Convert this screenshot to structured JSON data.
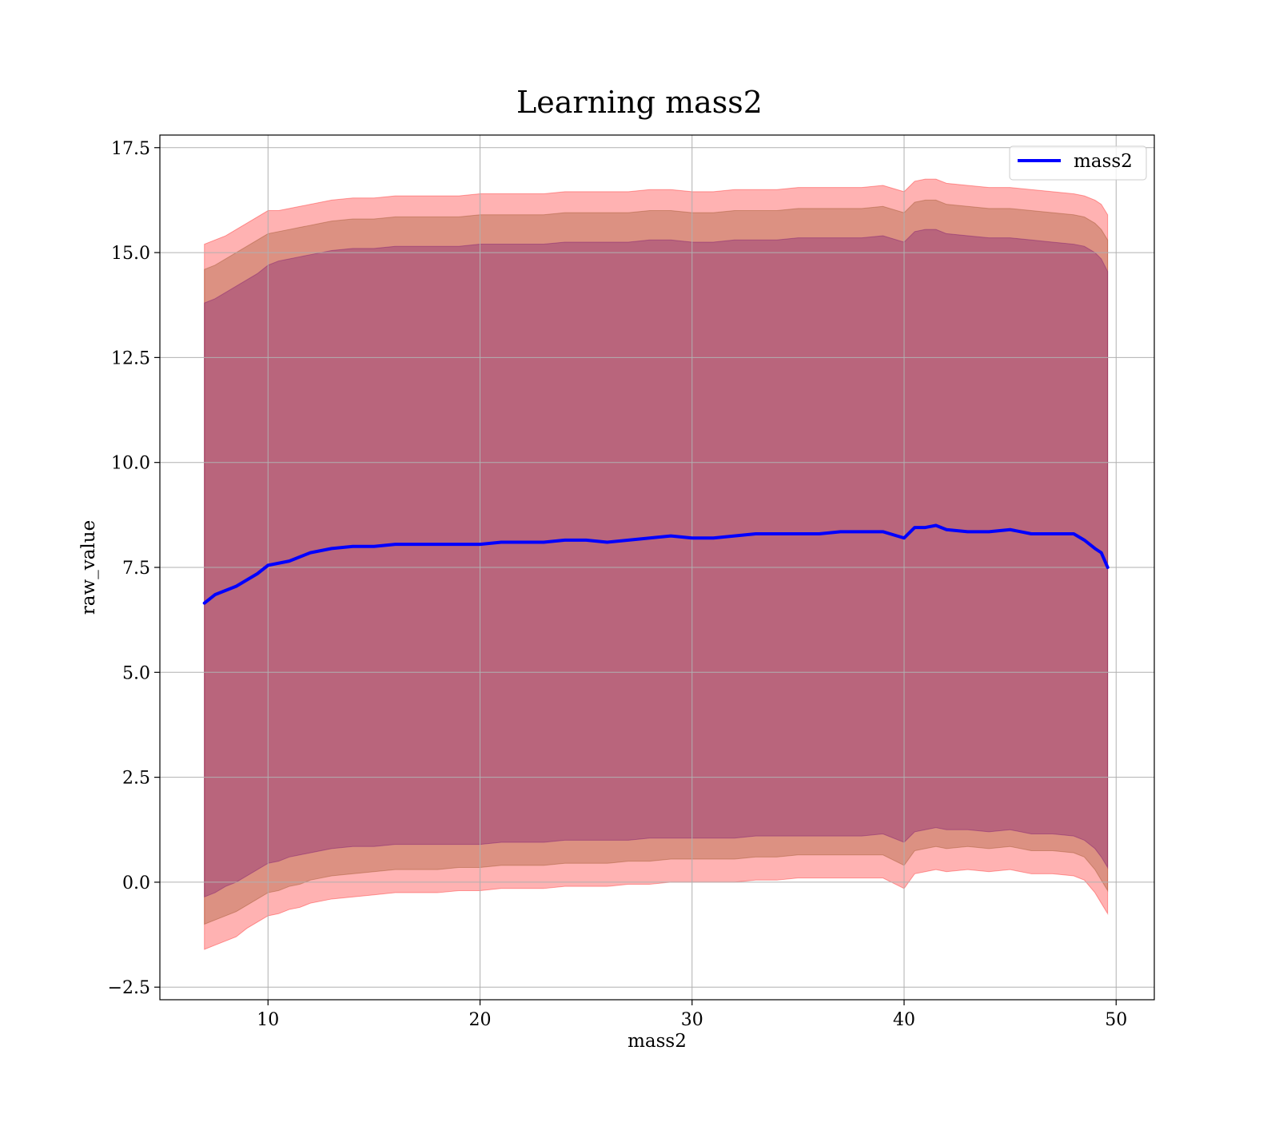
{
  "chart_data": {
    "type": "line",
    "title": "Learning mass2",
    "xlabel": "mass2",
    "ylabel": "raw_value",
    "xlim": [
      4.9,
      51.8
    ],
    "ylim": [
      -2.8,
      17.8
    ],
    "x_ticks": [
      10,
      20,
      30,
      40,
      50
    ],
    "y_ticks": [
      -2.5,
      0.0,
      2.5,
      5.0,
      7.5,
      10.0,
      12.5,
      15.0,
      17.5
    ],
    "x_tick_labels": [
      "10",
      "20",
      "30",
      "40",
      "50"
    ],
    "y_tick_labels": [
      "−2.5",
      "0.0",
      "2.5",
      "5.0",
      "7.5",
      "10.0",
      "12.5",
      "15.0",
      "17.5"
    ],
    "grid": true,
    "legend_position": "top-right",
    "series": [
      {
        "name": "mass2",
        "color": "#0000ff",
        "x": [
          7.0,
          7.5,
          8.0,
          8.5,
          9.0,
          9.5,
          10.0,
          10.5,
          11.0,
          11.5,
          12.0,
          12.5,
          13.0,
          14.0,
          15.0,
          16.0,
          17.0,
          18.0,
          19.0,
          20.0,
          21.0,
          22.0,
          23.0,
          24.0,
          25.0,
          26.0,
          27.0,
          28.0,
          29.0,
          30.0,
          31.0,
          32.0,
          33.0,
          34.0,
          35.0,
          36.0,
          37.0,
          38.0,
          39.0,
          40.0,
          40.5,
          41.0,
          41.5,
          42.0,
          43.0,
          44.0,
          45.0,
          46.0,
          47.0,
          48.0,
          48.5,
          49.0,
          49.3,
          49.6
        ],
        "values": [
          6.65,
          6.85,
          6.95,
          7.05,
          7.2,
          7.35,
          7.55,
          7.6,
          7.65,
          7.75,
          7.85,
          7.9,
          7.95,
          8.0,
          8.0,
          8.05,
          8.05,
          8.05,
          8.05,
          8.05,
          8.1,
          8.1,
          8.1,
          8.15,
          8.15,
          8.1,
          8.15,
          8.2,
          8.25,
          8.2,
          8.2,
          8.25,
          8.3,
          8.3,
          8.3,
          8.3,
          8.35,
          8.35,
          8.35,
          8.2,
          8.45,
          8.45,
          8.5,
          8.4,
          8.35,
          8.35,
          8.4,
          8.3,
          8.3,
          8.3,
          8.15,
          7.95,
          7.85,
          7.5
        ]
      }
    ],
    "bands": [
      {
        "label": "",
        "color": "#ff0000",
        "opacity": 0.3,
        "x": [
          7.0,
          7.5,
          8.0,
          8.5,
          9.0,
          9.5,
          10.0,
          10.5,
          11.0,
          11.5,
          12.0,
          12.5,
          13.0,
          14.0,
          15.0,
          16.0,
          17.0,
          18.0,
          19.0,
          20.0,
          21.0,
          22.0,
          23.0,
          24.0,
          25.0,
          26.0,
          27.0,
          28.0,
          29.0,
          30.0,
          31.0,
          32.0,
          33.0,
          34.0,
          35.0,
          36.0,
          37.0,
          38.0,
          39.0,
          40.0,
          40.5,
          41.0,
          41.5,
          42.0,
          43.0,
          44.0,
          45.0,
          46.0,
          47.0,
          48.0,
          48.5,
          49.0,
          49.3,
          49.6
        ],
        "lower": [
          -1.6,
          -1.5,
          -1.4,
          -1.3,
          -1.1,
          -0.95,
          -0.8,
          -0.75,
          -0.65,
          -0.6,
          -0.5,
          -0.45,
          -0.4,
          -0.35,
          -0.3,
          -0.25,
          -0.25,
          -0.25,
          -0.2,
          -0.2,
          -0.15,
          -0.15,
          -0.15,
          -0.1,
          -0.1,
          -0.1,
          -0.05,
          -0.05,
          0.0,
          0.0,
          0.0,
          0.0,
          0.05,
          0.05,
          0.1,
          0.1,
          0.1,
          0.1,
          0.1,
          -0.15,
          0.2,
          0.25,
          0.3,
          0.25,
          0.3,
          0.25,
          0.3,
          0.2,
          0.2,
          0.15,
          0.05,
          -0.25,
          -0.5,
          -0.75
        ],
        "upper": [
          15.2,
          15.3,
          15.4,
          15.55,
          15.7,
          15.85,
          16.0,
          16.0,
          16.05,
          16.1,
          16.15,
          16.2,
          16.25,
          16.3,
          16.3,
          16.35,
          16.35,
          16.35,
          16.35,
          16.4,
          16.4,
          16.4,
          16.4,
          16.45,
          16.45,
          16.45,
          16.45,
          16.5,
          16.5,
          16.45,
          16.45,
          16.5,
          16.5,
          16.5,
          16.55,
          16.55,
          16.55,
          16.55,
          16.6,
          16.45,
          16.7,
          16.75,
          16.75,
          16.65,
          16.6,
          16.55,
          16.55,
          16.5,
          16.45,
          16.4,
          16.35,
          16.25,
          16.15,
          15.9
        ]
      },
      {
        "label": "",
        "color": "#8b4513",
        "opacity": 0.3,
        "x": [
          7.0,
          7.5,
          8.0,
          8.5,
          9.0,
          9.5,
          10.0,
          10.5,
          11.0,
          11.5,
          12.0,
          12.5,
          13.0,
          14.0,
          15.0,
          16.0,
          17.0,
          18.0,
          19.0,
          20.0,
          21.0,
          22.0,
          23.0,
          24.0,
          25.0,
          26.0,
          27.0,
          28.0,
          29.0,
          30.0,
          31.0,
          32.0,
          33.0,
          34.0,
          35.0,
          36.0,
          37.0,
          38.0,
          39.0,
          40.0,
          40.5,
          41.0,
          41.5,
          42.0,
          43.0,
          44.0,
          45.0,
          46.0,
          47.0,
          48.0,
          48.5,
          49.0,
          49.3,
          49.6
        ],
        "lower": [
          -1.0,
          -0.9,
          -0.8,
          -0.7,
          -0.55,
          -0.4,
          -0.25,
          -0.2,
          -0.1,
          -0.05,
          0.05,
          0.1,
          0.15,
          0.2,
          0.25,
          0.3,
          0.3,
          0.3,
          0.35,
          0.35,
          0.4,
          0.4,
          0.4,
          0.45,
          0.45,
          0.45,
          0.5,
          0.5,
          0.55,
          0.55,
          0.55,
          0.55,
          0.6,
          0.6,
          0.65,
          0.65,
          0.65,
          0.65,
          0.65,
          0.4,
          0.75,
          0.8,
          0.85,
          0.8,
          0.85,
          0.8,
          0.85,
          0.75,
          0.75,
          0.7,
          0.6,
          0.3,
          0.05,
          -0.2
        ],
        "upper": [
          14.6,
          14.7,
          14.85,
          15.0,
          15.15,
          15.3,
          15.45,
          15.5,
          15.55,
          15.6,
          15.65,
          15.7,
          15.75,
          15.8,
          15.8,
          15.85,
          15.85,
          15.85,
          15.85,
          15.9,
          15.9,
          15.9,
          15.9,
          15.95,
          15.95,
          15.95,
          15.95,
          16.0,
          16.0,
          15.95,
          15.95,
          16.0,
          16.0,
          16.0,
          16.05,
          16.05,
          16.05,
          16.05,
          16.1,
          15.95,
          16.2,
          16.25,
          16.25,
          16.15,
          16.1,
          16.05,
          16.05,
          16.0,
          15.95,
          15.9,
          15.85,
          15.7,
          15.55,
          15.3
        ]
      },
      {
        "label": "",
        "color": "#6b0070",
        "opacity": 0.3,
        "x": [
          7.0,
          7.5,
          8.0,
          8.5,
          9.0,
          9.5,
          10.0,
          10.5,
          11.0,
          11.5,
          12.0,
          12.5,
          13.0,
          14.0,
          15.0,
          16.0,
          17.0,
          18.0,
          19.0,
          20.0,
          21.0,
          22.0,
          23.0,
          24.0,
          25.0,
          26.0,
          27.0,
          28.0,
          29.0,
          30.0,
          31.0,
          32.0,
          33.0,
          34.0,
          35.0,
          36.0,
          37.0,
          38.0,
          39.0,
          40.0,
          40.5,
          41.0,
          41.5,
          42.0,
          43.0,
          44.0,
          45.0,
          46.0,
          47.0,
          48.0,
          48.5,
          49.0,
          49.3,
          49.6
        ],
        "lower": [
          -0.35,
          -0.25,
          -0.1,
          0.0,
          0.15,
          0.3,
          0.45,
          0.5,
          0.6,
          0.65,
          0.7,
          0.75,
          0.8,
          0.85,
          0.85,
          0.9,
          0.9,
          0.9,
          0.9,
          0.9,
          0.95,
          0.95,
          0.95,
          1.0,
          1.0,
          1.0,
          1.0,
          1.05,
          1.05,
          1.05,
          1.05,
          1.05,
          1.1,
          1.1,
          1.1,
          1.1,
          1.1,
          1.1,
          1.15,
          0.95,
          1.2,
          1.25,
          1.3,
          1.25,
          1.25,
          1.2,
          1.25,
          1.15,
          1.15,
          1.1,
          1.0,
          0.8,
          0.6,
          0.35
        ],
        "upper": [
          13.8,
          13.9,
          14.05,
          14.2,
          14.35,
          14.5,
          14.7,
          14.8,
          14.85,
          14.9,
          14.95,
          15.0,
          15.05,
          15.1,
          15.1,
          15.15,
          15.15,
          15.15,
          15.15,
          15.2,
          15.2,
          15.2,
          15.2,
          15.25,
          15.25,
          15.25,
          15.25,
          15.3,
          15.3,
          15.25,
          15.25,
          15.3,
          15.3,
          15.3,
          15.35,
          15.35,
          15.35,
          15.35,
          15.4,
          15.25,
          15.5,
          15.55,
          15.55,
          15.45,
          15.4,
          15.35,
          15.35,
          15.3,
          15.25,
          15.2,
          15.15,
          15.0,
          14.85,
          14.55
        ]
      }
    ]
  }
}
